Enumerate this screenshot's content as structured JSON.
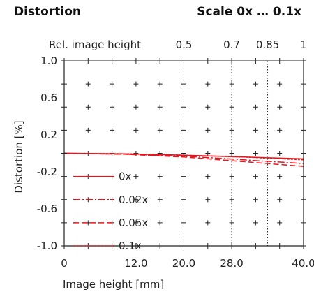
{
  "header": {
    "title": "Distortion",
    "scale": "Scale 0x … 0.1x"
  },
  "chart_data": {
    "type": "line",
    "title": "Distortion",
    "xlabel": "Image height [mm]",
    "ylabel": "Distortion [%]",
    "secondary_xlabel": "Rel. image height",
    "xlim": [
      0,
      40
    ],
    "ylim": [
      -1.0,
      1.0
    ],
    "xticks": [
      0,
      12,
      20,
      28,
      40
    ],
    "xtick_labels": [
      "0",
      "12.0",
      "20.0",
      "28.0",
      "40.0"
    ],
    "yticks": [
      1.0,
      0.6,
      0.2,
      -0.2,
      -0.6,
      -1.0
    ],
    "ytick_labels": [
      "1.0",
      "0.6",
      "0.2",
      "-0.2",
      "-0.6",
      "-1.0"
    ],
    "rel_ticks": [
      {
        "rel": 0.5,
        "label": "0.5"
      },
      {
        "rel": 0.7,
        "label": "0.7"
      },
      {
        "rel": 0.85,
        "label": "0.85"
      },
      {
        "rel": 1.0,
        "label": "1"
      }
    ],
    "series": [
      {
        "name": "0x",
        "style": "solid",
        "x": [
          0,
          10,
          20,
          30,
          40
        ],
        "y": [
          0,
          -0.005,
          -0.02,
          -0.04,
          -0.06
        ]
      },
      {
        "name": "0.02x",
        "style": "dashdot",
        "x": [
          0,
          10,
          20,
          30,
          40
        ],
        "y": [
          0,
          -0.01,
          -0.03,
          -0.07,
          -0.11
        ]
      },
      {
        "name": "0.05x",
        "style": "dashed",
        "x": [
          0,
          10,
          20,
          30,
          40
        ],
        "y": [
          0,
          -0.01,
          -0.04,
          -0.09,
          -0.14
        ]
      },
      {
        "name": "0.1x",
        "style": "dotted",
        "x": [
          0,
          10,
          20,
          30,
          40
        ],
        "y": [
          0,
          -0.005,
          -0.02,
          -0.04,
          -0.07
        ]
      }
    ],
    "series_color": "#e8141b",
    "legend_position": "lower-left"
  }
}
